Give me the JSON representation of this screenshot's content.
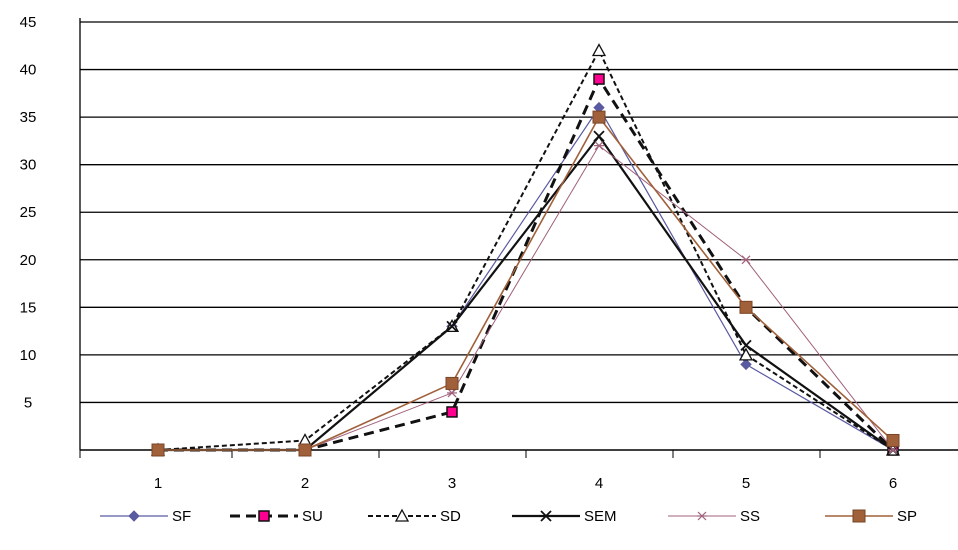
{
  "chart_data": {
    "type": "line",
    "categories": [
      "1",
      "2",
      "3",
      "4",
      "5",
      "6"
    ],
    "ylim": [
      0,
      45
    ],
    "yticks": [
      5,
      10,
      15,
      20,
      25,
      30,
      35,
      40,
      45
    ],
    "grid": true,
    "legend_position": "bottom",
    "series": [
      {
        "name": "SF",
        "values": [
          0,
          0,
          13,
          36,
          9,
          0
        ],
        "color": "#5a5aa0",
        "dash": "",
        "width": 1.2,
        "marker": "diamond"
      },
      {
        "name": "SU",
        "values": [
          0,
          0,
          4,
          39,
          15,
          0
        ],
        "color": "#111111",
        "dash": "10,6",
        "width": 3,
        "marker": "square-magenta"
      },
      {
        "name": "SD",
        "values": [
          0,
          1,
          13,
          42,
          10,
          0
        ],
        "color": "#111111",
        "dash": "5,3",
        "width": 2,
        "marker": "triangle"
      },
      {
        "name": "SEM",
        "values": [
          0,
          0,
          13,
          33,
          11,
          0
        ],
        "color": "#111111",
        "dash": "",
        "width": 2.2,
        "marker": "x"
      },
      {
        "name": "SS",
        "values": [
          0,
          0,
          6,
          32,
          20,
          0
        ],
        "color": "#a0607a",
        "dash": "",
        "width": 1,
        "marker": "star"
      },
      {
        "name": "SP",
        "values": [
          0,
          0,
          7,
          35,
          15,
          1
        ],
        "color": "#a0603a",
        "dash": "",
        "width": 1.6,
        "marker": "square-brown"
      }
    ]
  }
}
